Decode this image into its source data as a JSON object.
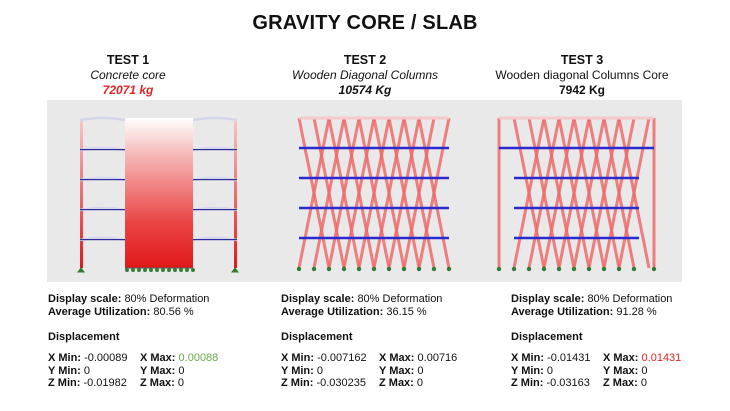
{
  "title": "GRAVITY CORE / SLAB",
  "tests": [
    {
      "name": "TEST 1",
      "subtitle": "Concrete core",
      "mass": "72071 kg",
      "mass_color": "#e22424",
      "display_scale_label": "Display scale:",
      "display_scale_value": "80% Deformation",
      "avg_util_label": "Average Utilization:",
      "avg_util_value": "80.56 %",
      "displacement_title": "Displacement",
      "x_min_label": "X Min:",
      "x_min": "-0.00089",
      "x_max_label": "X Max:",
      "x_max": "0.00088",
      "y_min_label": "Y Min:",
      "y_min": "0",
      "y_max_label": "Y Max:",
      "y_max": "0",
      "z_min_label": "Z Min:",
      "z_min": "-0.01982",
      "z_max_label": "Z Max:",
      "z_max": "0"
    },
    {
      "name": "TEST 2",
      "subtitle": "Wooden Diagonal Columns",
      "mass": "10574 Kg",
      "display_scale_label": "Display scale:",
      "display_scale_value": "80% Deformation",
      "avg_util_label": "Average Utilization:",
      "avg_util_value": "36.15 %",
      "displacement_title": "Displacement",
      "x_min_label": "X Min:",
      "x_min": "-0.007162",
      "x_max_label": "X Max:",
      "x_max": "0.00716",
      "y_min_label": "Y Min:",
      "y_min": "0",
      "y_max_label": "Y Max:",
      "y_max": "0",
      "z_min_label": "Z Min:",
      "z_min": "-0.030235",
      "z_max_label": "Z Max:",
      "z_max": "0"
    },
    {
      "name": "TEST  3",
      "subtitle": "Wooden diagonal Columns Core",
      "mass": "7942 Kg",
      "display_scale_label": "Display scale:",
      "display_scale_value": "80% Deformation",
      "avg_util_label": "Average Utilization:",
      "avg_util_value": "91.28 %",
      "displacement_title": "Displacement",
      "x_min_label": "X Min:",
      "x_min": "-0.01431",
      "x_max_label": "X Max:",
      "x_max": "0.01431",
      "y_min_label": "Y Min:",
      "y_min": "0",
      "y_max_label": "Y Max:",
      "y_max": "0",
      "z_min_label": "Z Min:",
      "z_min": "-0.03163",
      "z_max_label": "Z Max:",
      "z_max": "0"
    }
  ],
  "colors": {
    "render_bg": "#e9e9e9",
    "stress_red": "#e22424",
    "slab_blue": "#2a2ad0",
    "positive_green": "#6aa84f"
  }
}
